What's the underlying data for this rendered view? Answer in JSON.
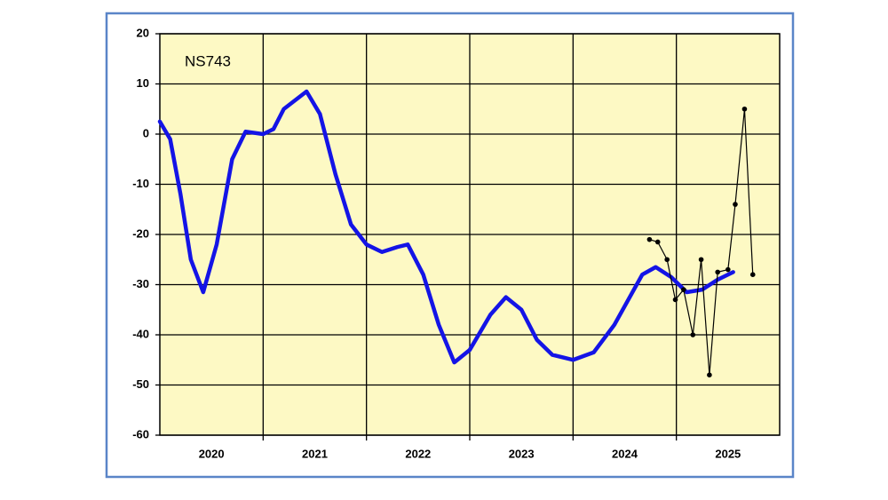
{
  "chart_data": {
    "type": "line",
    "annotation": "NS743",
    "categories": [
      "2020",
      "2021",
      "2022",
      "2023",
      "2024",
      "2025"
    ],
    "xlim": [
      2020,
      2026
    ],
    "ylim": [
      -60,
      20
    ],
    "yticks": [
      -60,
      -50,
      -40,
      -30,
      -20,
      -10,
      0,
      10,
      20
    ],
    "grid": true,
    "series": [
      {
        "color": "#1414e6",
        "marker": false,
        "x": [
          2020.0,
          2020.1,
          2020.2,
          2020.3,
          2020.42,
          2020.55,
          2020.7,
          2020.83,
          2021.0,
          2021.1,
          2021.2,
          2021.42,
          2021.55,
          2021.7,
          2021.85,
          2022.0,
          2022.15,
          2022.3,
          2022.4,
          2022.55,
          2022.7,
          2022.85,
          2023.0,
          2023.2,
          2023.35,
          2023.5,
          2023.65,
          2023.8,
          2024.0,
          2024.2,
          2024.4,
          2024.67,
          2024.8,
          2024.95,
          2025.1,
          2025.25,
          2025.4,
          2025.55
        ],
        "values": [
          2.5,
          -1,
          -12,
          -25,
          -31.5,
          -22,
          -5,
          0.5,
          0,
          1,
          5,
          8.5,
          4,
          -8,
          -18,
          -22,
          -23.5,
          -22.5,
          -22,
          -28,
          -38,
          -45.5,
          -43,
          -36,
          -32.5,
          -35,
          -41,
          -44,
          -45,
          -43.5,
          -38,
          -28,
          -26.5,
          -28.5,
          -31.5,
          -31,
          -29,
          -27.5
        ]
      },
      {
        "color": "#000000",
        "marker": true,
        "x": [
          2024.74,
          2024.82,
          2024.91,
          2024.99,
          2025.07,
          2025.16,
          2025.24,
          2025.32,
          2025.4,
          2025.5,
          2025.57,
          2025.66,
          2025.74
        ],
        "values": [
          -21,
          -21.5,
          -25,
          -33,
          -31,
          -40,
          -25,
          -48,
          -27.5,
          -27,
          -14,
          5,
          -28
        ]
      }
    ]
  }
}
